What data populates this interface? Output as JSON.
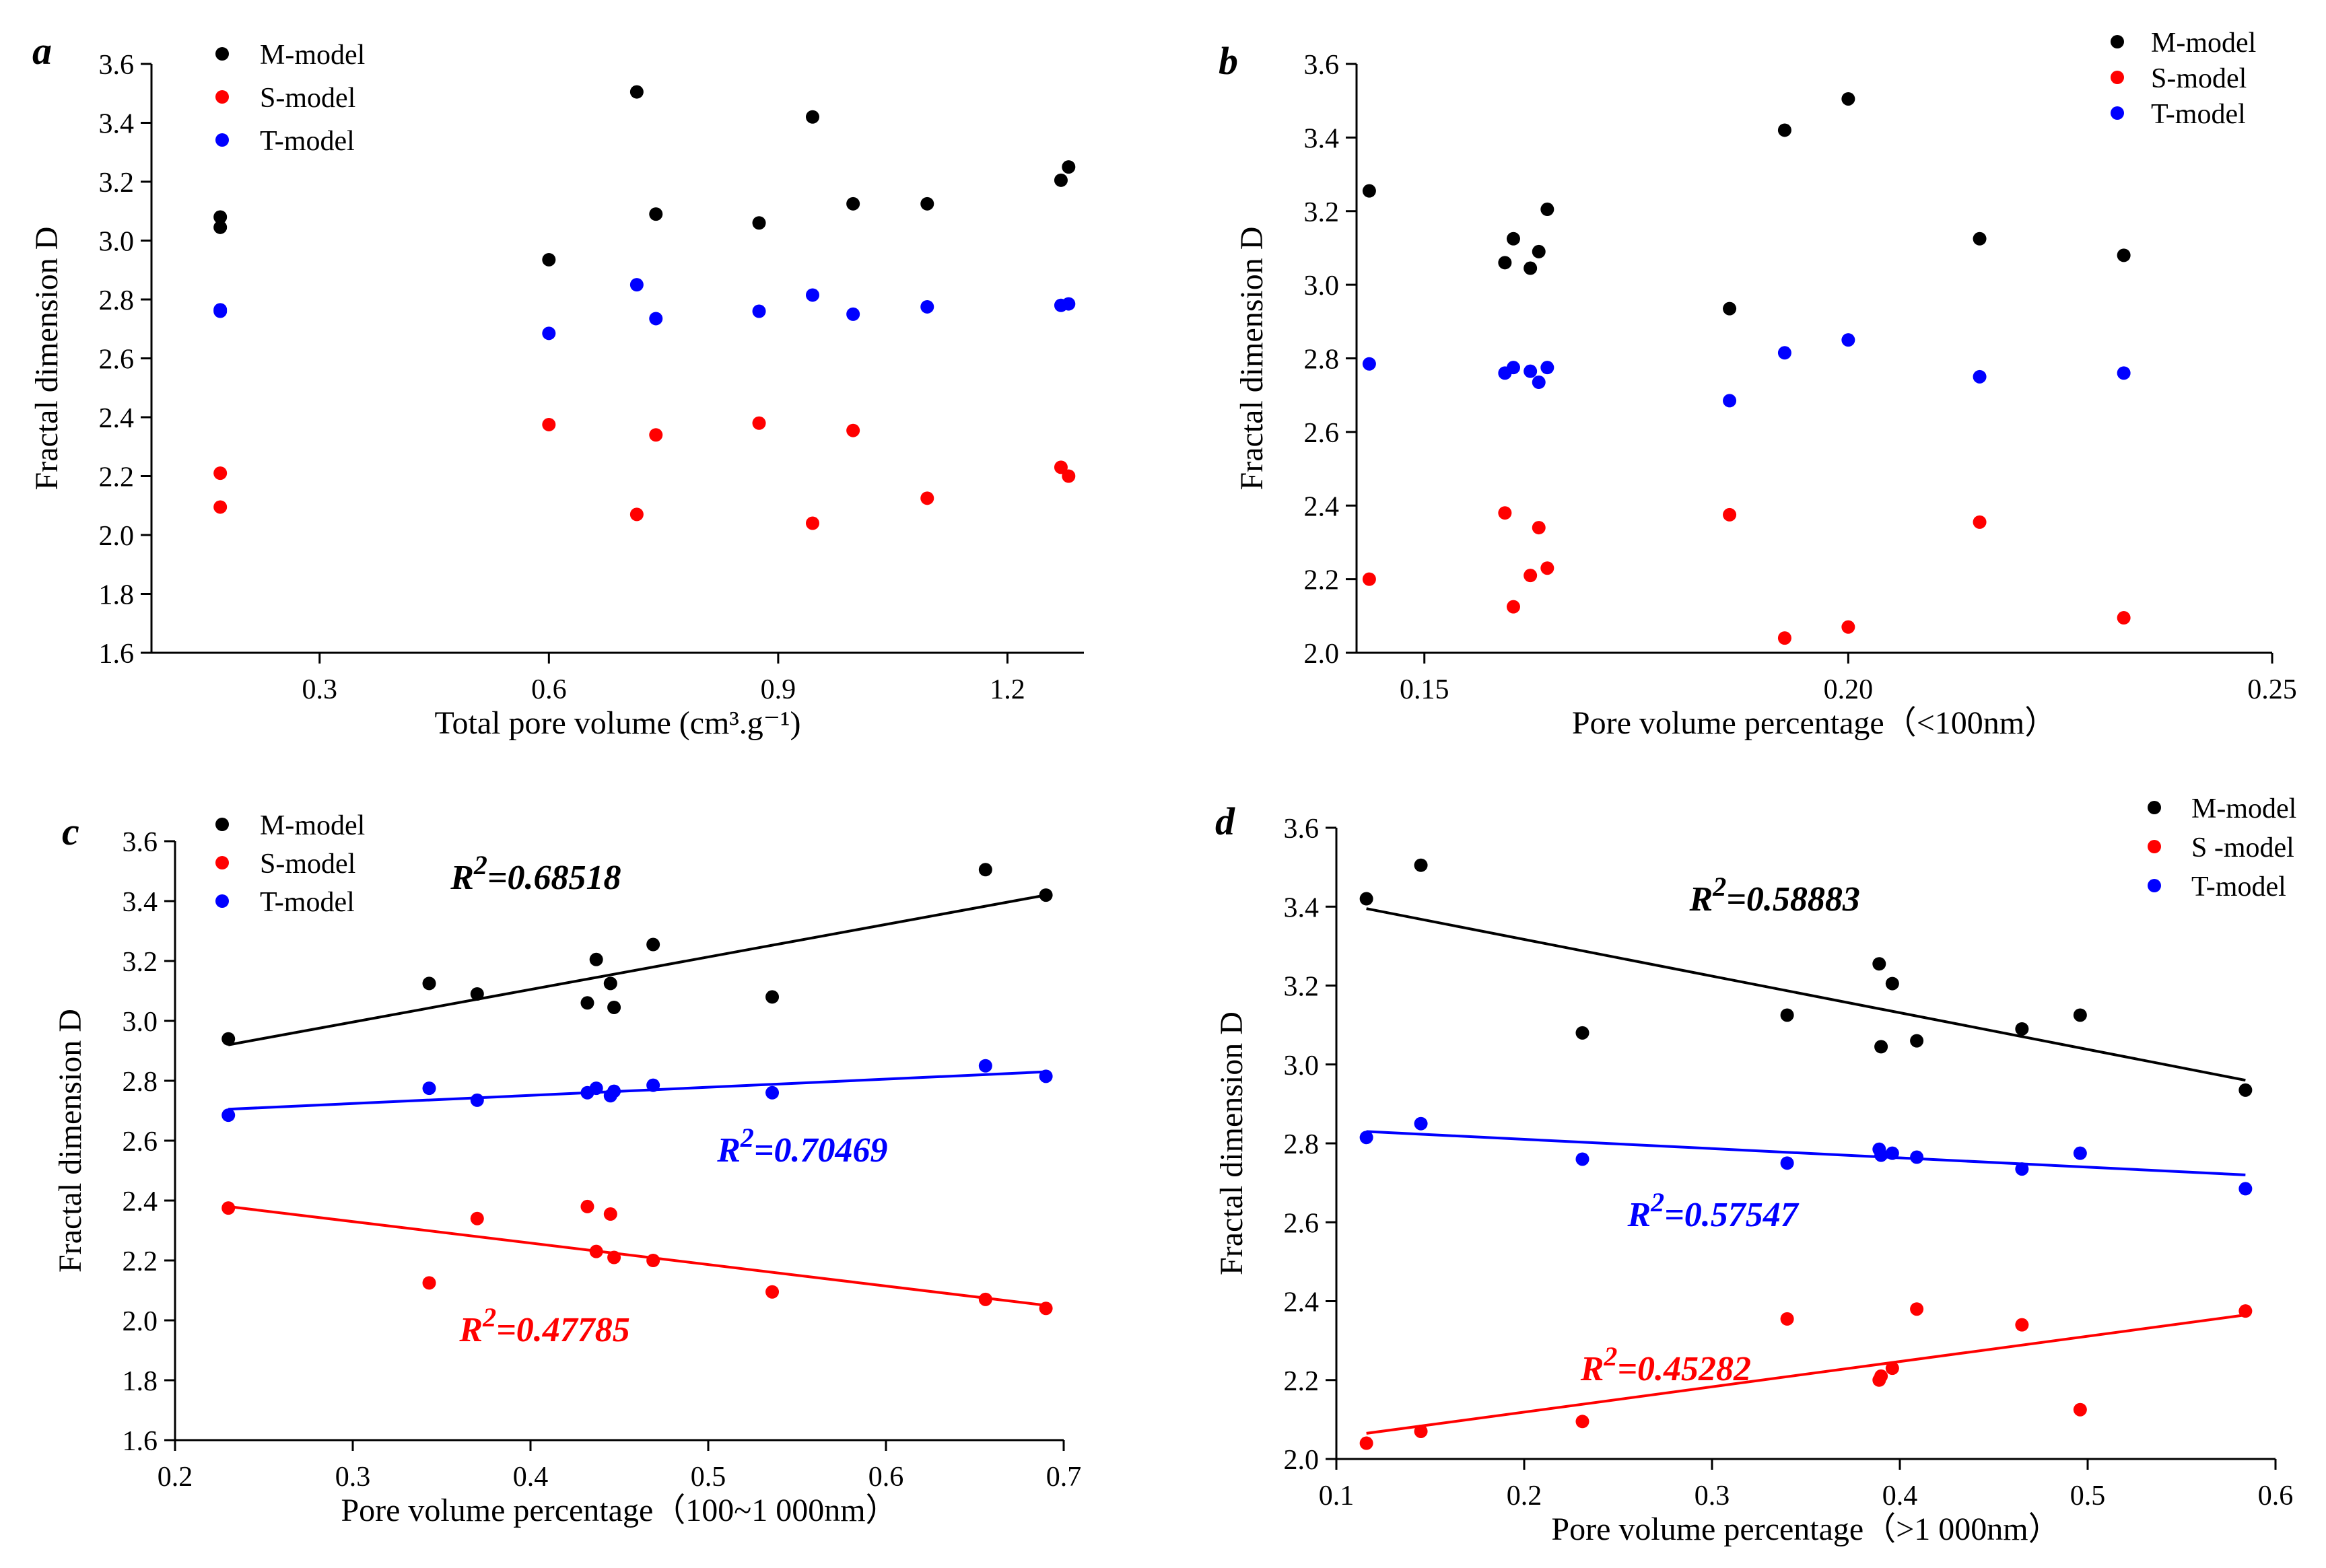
{
  "colors": {
    "M": "#000000",
    "S": "#ff0000",
    "T": "#0000ff"
  },
  "chart_data": [
    {
      "panel_label": "a",
      "type": "scatter",
      "title": "",
      "xlabel": "Total pore volume (cm³.g⁻¹)",
      "ylabel": "Fractal dimension D",
      "xlim": [
        0.08,
        1.3
      ],
      "ylim": [
        1.6,
        3.6
      ],
      "xticks": [
        0.3,
        0.6,
        0.9,
        1.2
      ],
      "xtick_labels": [
        "0.3",
        "0.6",
        "0.9",
        "1.2"
      ],
      "yticks": [
        1.6,
        1.8,
        2.0,
        2.2,
        2.4,
        2.6,
        2.8,
        3.0,
        3.2,
        3.4,
        3.6
      ],
      "ytick_labels": [
        "1.6",
        "1.8",
        "2.0",
        "2.2",
        "2.4",
        "2.6",
        "2.8",
        "3.0",
        "3.2",
        "3.4",
        "3.6"
      ],
      "legend_position": "top-left",
      "series": [
        {
          "name": "M-model",
          "color_key": "M",
          "x": [
            0.17,
            0.17,
            0.6,
            0.715,
            0.74,
            0.875,
            0.945,
            0.998,
            1.095,
            1.27,
            1.28
          ],
          "y": [
            3.08,
            3.045,
            2.935,
            3.505,
            3.09,
            3.06,
            3.42,
            3.125,
            3.125,
            3.205,
            3.25
          ]
        },
        {
          "name": "S-model",
          "color_key": "S",
          "x": [
            0.17,
            0.17,
            0.6,
            0.715,
            0.74,
            0.875,
            0.945,
            0.998,
            1.095,
            1.27,
            1.28
          ],
          "y": [
            2.21,
            2.095,
            2.375,
            2.07,
            2.34,
            2.38,
            2.04,
            2.355,
            2.125,
            2.23,
            2.2
          ]
        },
        {
          "name": "T-model",
          "color_key": "T",
          "x": [
            0.17,
            0.17,
            0.6,
            0.715,
            0.74,
            0.875,
            0.945,
            0.998,
            1.095,
            1.27,
            1.28
          ],
          "y": [
            2.765,
            2.76,
            2.685,
            2.85,
            2.735,
            2.76,
            2.815,
            2.75,
            2.775,
            2.78,
            2.785
          ]
        }
      ],
      "annotations": []
    },
    {
      "panel_label": "b",
      "type": "scatter",
      "title": "",
      "xlabel": "Pore volume percentage（<100nm）",
      "ylabel": "Fractal dimension D",
      "xlim": [
        0.142,
        0.25
      ],
      "ylim": [
        2.0,
        3.6
      ],
      "xticks": [
        0.15,
        0.2,
        0.25
      ],
      "xtick_labels": [
        "0.15",
        "0.20",
        "0.25"
      ],
      "yticks": [
        2.0,
        2.2,
        2.4,
        2.6,
        2.8,
        3.0,
        3.2,
        3.4,
        3.6
      ],
      "ytick_labels": [
        "2.0",
        "2.2",
        "2.4",
        "2.6",
        "2.8",
        "3.0",
        "3.2",
        "3.4",
        "3.6"
      ],
      "legend_position": "top-right",
      "series": [
        {
          "name": "M-model",
          "color_key": "M",
          "x": [
            0.1435,
            0.1595,
            0.1605,
            0.1625,
            0.1635,
            0.1645,
            0.186,
            0.1925,
            0.2,
            0.2155,
            0.2325
          ],
          "y": [
            3.255,
            3.06,
            3.125,
            3.045,
            3.09,
            3.205,
            2.935,
            3.42,
            3.505,
            3.125,
            3.08
          ]
        },
        {
          "name": "S-model",
          "color_key": "S",
          "x": [
            0.1435,
            0.1595,
            0.1605,
            0.1625,
            0.1635,
            0.1645,
            0.186,
            0.1925,
            0.2,
            0.2155,
            0.2325
          ],
          "y": [
            2.2,
            2.38,
            2.125,
            2.21,
            2.34,
            2.23,
            2.375,
            2.04,
            2.07,
            2.355,
            2.095
          ]
        },
        {
          "name": "T-model",
          "color_key": "T",
          "x": [
            0.1435,
            0.1595,
            0.1605,
            0.1625,
            0.1635,
            0.1645,
            0.186,
            0.1925,
            0.2,
            0.2155,
            0.2325
          ],
          "y": [
            2.785,
            2.76,
            2.775,
            2.765,
            2.735,
            2.775,
            2.685,
            2.815,
            2.85,
            2.75,
            2.76
          ]
        }
      ],
      "annotations": []
    },
    {
      "panel_label": "c",
      "type": "scatter",
      "title": "",
      "xlabel": "Pore volume percentage（100~1 000nm）",
      "ylabel": "Fractal dimension D",
      "xlim": [
        0.2,
        0.7
      ],
      "ylim": [
        1.6,
        3.6
      ],
      "xticks": [
        0.2,
        0.3,
        0.4,
        0.5,
        0.6,
        0.7
      ],
      "xtick_labels": [
        "0.2",
        "0.3",
        "0.4",
        "0.5",
        "0.6",
        "0.7"
      ],
      "yticks": [
        1.6,
        1.8,
        2.0,
        2.2,
        2.4,
        2.6,
        2.8,
        3.0,
        3.2,
        3.4,
        3.6
      ],
      "ytick_labels": [
        "1.6",
        "1.8",
        "2.0",
        "2.2",
        "2.4",
        "2.6",
        "2.8",
        "3.0",
        "3.2",
        "3.4",
        "3.6"
      ],
      "legend_position": "top-left",
      "series": [
        {
          "name": "M-model",
          "color_key": "M",
          "x": [
            0.23,
            0.343,
            0.37,
            0.432,
            0.437,
            0.445,
            0.447,
            0.469,
            0.536,
            0.656,
            0.69
          ],
          "y": [
            2.94,
            3.125,
            3.09,
            3.06,
            3.205,
            3.125,
            3.045,
            3.255,
            3.08,
            3.505,
            3.42
          ],
          "trend": [
            [
              0.23,
              2.92
            ],
            [
              0.69,
              3.42
            ]
          ]
        },
        {
          "name": "S-model",
          "color_key": "S",
          "x": [
            0.23,
            0.343,
            0.37,
            0.432,
            0.437,
            0.445,
            0.447,
            0.469,
            0.536,
            0.656,
            0.69
          ],
          "y": [
            2.375,
            2.125,
            2.34,
            2.38,
            2.23,
            2.355,
            2.21,
            2.2,
            2.095,
            2.07,
            2.04
          ],
          "trend": [
            [
              0.23,
              2.38
            ],
            [
              0.69,
              2.05
            ]
          ]
        },
        {
          "name": "T-model",
          "color_key": "T",
          "x": [
            0.23,
            0.343,
            0.37,
            0.432,
            0.437,
            0.445,
            0.447,
            0.469,
            0.536,
            0.656,
            0.69
          ],
          "y": [
            2.685,
            2.775,
            2.735,
            2.76,
            2.775,
            2.75,
            2.765,
            2.785,
            2.76,
            2.85,
            2.815
          ],
          "trend": [
            [
              0.23,
              2.705
            ],
            [
              0.69,
              2.83
            ]
          ]
        }
      ],
      "annotations": [
        {
          "text": "0.68518",
          "color_key": "M",
          "x": 0.355,
          "y": 3.44
        },
        {
          "text": "0.70469",
          "color_key": "T",
          "x": 0.505,
          "y": 2.53
        },
        {
          "text": "0.47785",
          "color_key": "S",
          "x": 0.36,
          "y": 1.93
        }
      ]
    },
    {
      "panel_label": "d",
      "type": "scatter",
      "title": "",
      "xlabel": "Pore volume percentage（>1 000nm）",
      "ylabel": "Fractal dimension D",
      "xlim": [
        0.1,
        0.6
      ],
      "ylim": [
        2.0,
        3.6
      ],
      "xticks": [
        0.1,
        0.2,
        0.3,
        0.4,
        0.5,
        0.6
      ],
      "xtick_labels": [
        "0.1",
        "0.2",
        "0.3",
        "0.4",
        "0.5",
        "0.6"
      ],
      "yticks": [
        2.0,
        2.2,
        2.4,
        2.6,
        2.8,
        3.0,
        3.2,
        3.4,
        3.6
      ],
      "ytick_labels": [
        "2.0",
        "2.2",
        "2.4",
        "2.6",
        "2.8",
        "3.0",
        "3.2",
        "3.4",
        "3.6"
      ],
      "legend_position": "top-right",
      "series": [
        {
          "name": "M-model",
          "color_key": "M",
          "x": [
            0.116,
            0.145,
            0.231,
            0.34,
            0.389,
            0.39,
            0.396,
            0.409,
            0.465,
            0.496,
            0.584
          ],
          "y": [
            3.42,
            3.505,
            3.08,
            3.125,
            3.255,
            3.045,
            3.205,
            3.06,
            3.09,
            3.125,
            2.935
          ],
          "trend": [
            [
              0.116,
              3.395
            ],
            [
              0.584,
              2.96
            ]
          ]
        },
        {
          "name": "S -model",
          "color_key": "S",
          "x": [
            0.116,
            0.145,
            0.231,
            0.34,
            0.389,
            0.39,
            0.396,
            0.409,
            0.465,
            0.496,
            0.584
          ],
          "y": [
            2.04,
            2.07,
            2.095,
            2.355,
            2.2,
            2.21,
            2.23,
            2.38,
            2.34,
            2.125,
            2.375
          ],
          "trend": [
            [
              0.116,
              2.065
            ],
            [
              0.584,
              2.365
            ]
          ]
        },
        {
          "name": "T-model",
          "color_key": "T",
          "x": [
            0.116,
            0.145,
            0.231,
            0.34,
            0.389,
            0.39,
            0.396,
            0.409,
            0.465,
            0.496,
            0.584
          ],
          "y": [
            2.815,
            2.85,
            2.76,
            2.75,
            2.785,
            2.77,
            2.775,
            2.765,
            2.735,
            2.775,
            2.685
          ],
          "trend": [
            [
              0.116,
              2.83
            ],
            [
              0.584,
              2.72
            ]
          ]
        }
      ],
      "annotations": [
        {
          "text": "0.58883",
          "color_key": "M",
          "x": 0.288,
          "y": 3.39
        },
        {
          "text": "0.57547",
          "color_key": "T",
          "x": 0.255,
          "y": 2.59
        },
        {
          "text": "0.45282",
          "color_key": "S",
          "x": 0.23,
          "y": 2.2
        }
      ]
    }
  ]
}
